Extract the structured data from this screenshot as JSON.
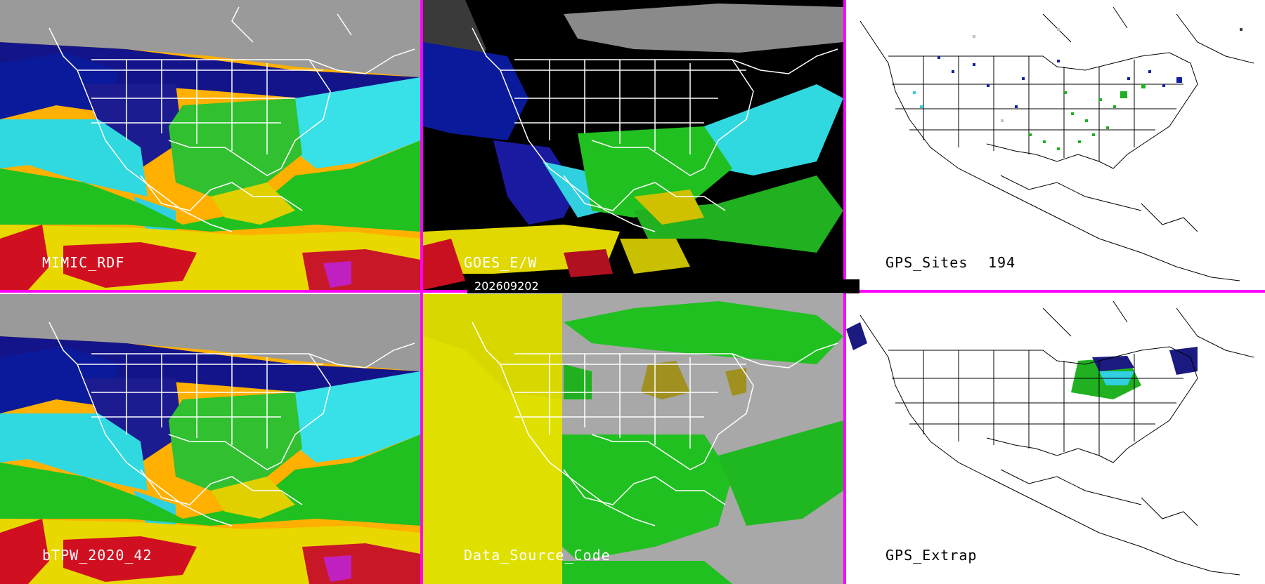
{
  "panels": [
    {
      "label": "MIMIC_RDF",
      "kind": "tpw"
    },
    {
      "label": "GOES_E/W",
      "kind": "goes"
    },
    {
      "label": "GPS_Sites",
      "count": "194",
      "kind": "gps"
    },
    {
      "label": "bTPW_2020_42",
      "kind": "tpw"
    },
    {
      "label": "Data_Source_Code",
      "kind": "source"
    },
    {
      "label": "GPS_Extrap",
      "kind": "gps"
    }
  ],
  "timestamp": "202609202",
  "colors": {
    "separator": "#ff00ff",
    "dry_dark": "#1a1a80",
    "dry_blue": "#1030b0",
    "cyan": "#30e0e0",
    "green": "#20c020",
    "yellow": "#e0e000",
    "olive": "#b0a030",
    "red": "#d01020",
    "magenta": "#c020c0",
    "gray": "#a8a8a8"
  }
}
